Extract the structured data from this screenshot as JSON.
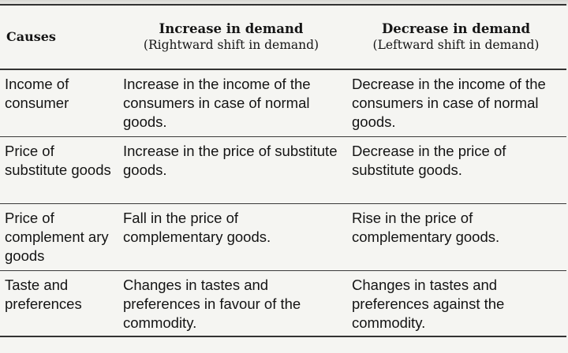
{
  "table": {
    "headers": {
      "causes": "Causes",
      "increase": {
        "title": "Increase in demand",
        "subtitle": "(Rightward shift in demand)"
      },
      "decrease": {
        "title": "Decrease in demand",
        "subtitle": "(Leftward shift in demand)"
      }
    },
    "rows": [
      {
        "cause": "Income of consumer",
        "increase": "Increase in the income of the consumers in case of normal goods.",
        "decrease": "Decrease in the income of the consumers in case of normal goods."
      },
      {
        "cause": "Price of substitute goods",
        "increase": "Increase in the price of substitute goods.",
        "decrease": "Decrease in the price of substitute goods."
      },
      {
        "cause": "Price of complement ary goods",
        "increase": "Fall in the price of complementary goods.",
        "decrease": "Rise in the price of complementary goods."
      },
      {
        "cause": "Taste and preferences",
        "increase": "Changes in tastes and preferences in favour of the commodity.",
        "decrease": "Changes in tastes and preferences against the commodity."
      }
    ]
  }
}
